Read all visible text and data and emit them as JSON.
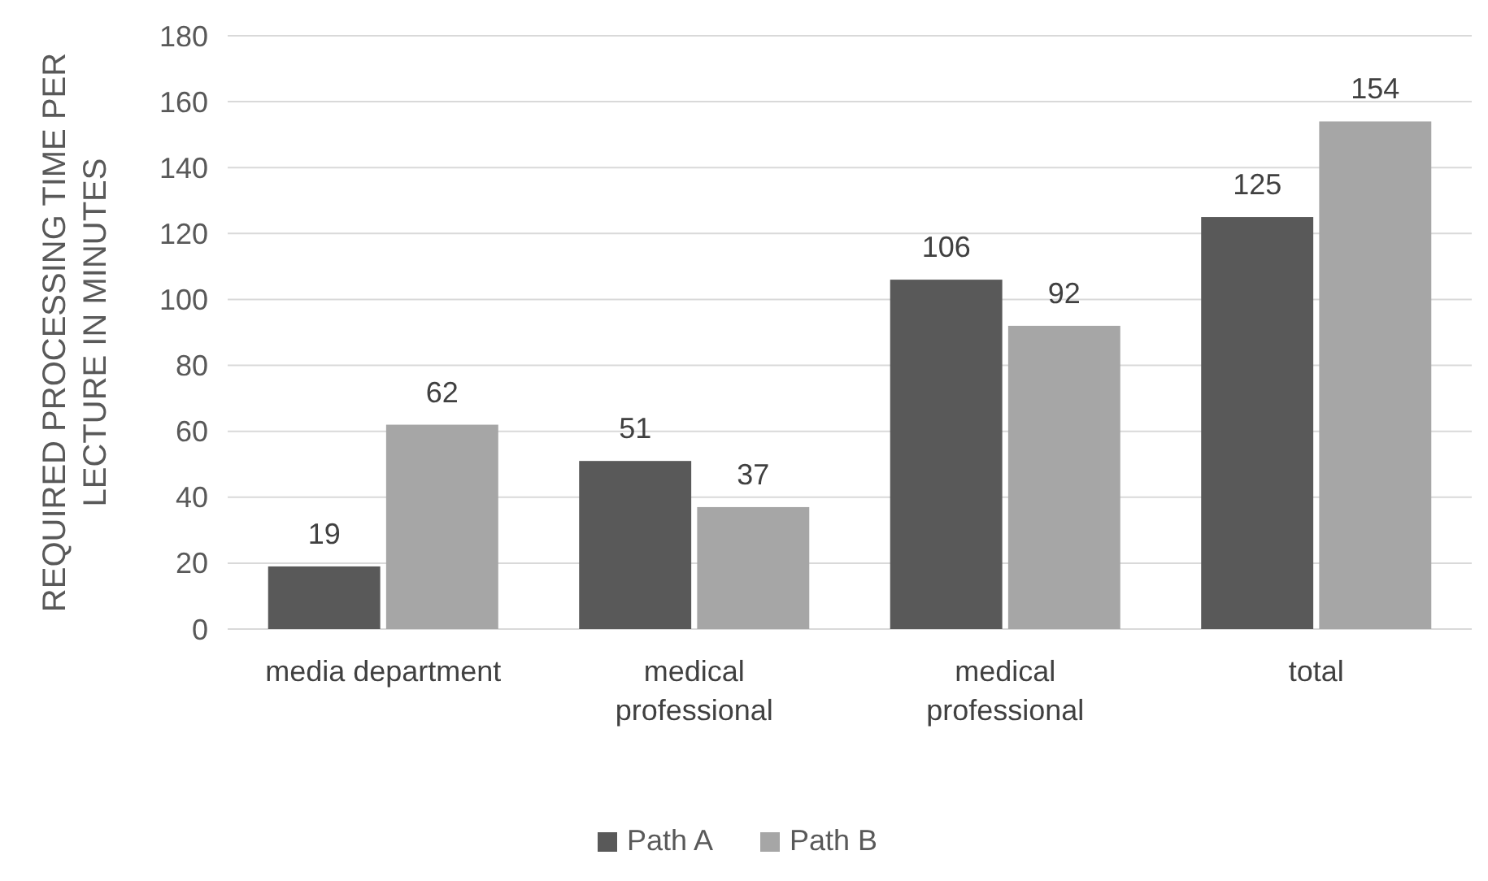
{
  "chart_data": {
    "type": "bar",
    "ylabel": "REQUIRED PROCESSING TIME PER LECTURE IN MINUTES",
    "categories": [
      "media department",
      "medical professional",
      "medical professional",
      "total"
    ],
    "series": [
      {
        "name": "Path A",
        "color": "#595959",
        "values": [
          19,
          51,
          106,
          125
        ]
      },
      {
        "name": "Path B",
        "color": "#a6a6a6",
        "values": [
          62,
          37,
          92,
          154
        ]
      }
    ],
    "ylim": [
      0,
      180
    ],
    "yticks": [
      0,
      20,
      40,
      60,
      80,
      100,
      120,
      140,
      160,
      180
    ],
    "grid": "y",
    "legend": "bottom",
    "data_labels": true
  }
}
